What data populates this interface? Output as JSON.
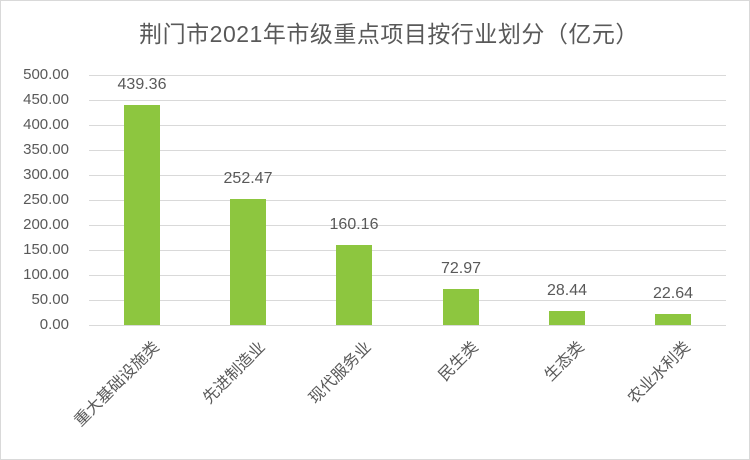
{
  "chart_data": {
    "type": "bar",
    "title": "荆门市2021年市级重点项目按行业划分（亿元）",
    "categories": [
      "重大基础设施类",
      "先进制造业",
      "现代服务业",
      "民生类",
      "生态类",
      "农业水利类"
    ],
    "values": [
      439.36,
      252.47,
      160.16,
      72.97,
      28.44,
      22.64
    ],
    "data_labels": [
      "439.36",
      "252.47",
      "160.16",
      "72.97",
      "28.44",
      "22.64"
    ],
    "xlabel": "",
    "ylabel": "",
    "ylim": [
      0,
      500
    ],
    "ytick_step": 50,
    "ytick_labels": [
      "0.00",
      "50.00",
      "100.00",
      "150.00",
      "200.00",
      "250.00",
      "300.00",
      "350.00",
      "400.00",
      "450.00",
      "500.00"
    ],
    "grid": true,
    "legend": false,
    "bar_color": "#8dc63f",
    "gridline_color": "#d9d9d9",
    "text_color": "#595959",
    "background_color": "#ffffff",
    "border_color": "#d9d9d9"
  }
}
